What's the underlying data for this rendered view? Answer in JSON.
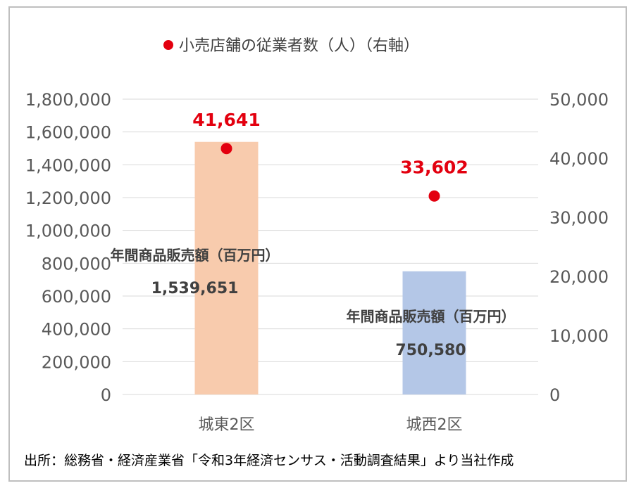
{
  "chart_data": {
    "type": "bar",
    "categories": [
      "城東2区",
      "城西2区"
    ],
    "series": [
      {
        "axis": "left",
        "type": "bar",
        "values": [
          1539651,
          750580
        ],
        "label": "年間商品販売額（百万円）",
        "colors": [
          "#f8cbad",
          "#b4c7e7"
        ]
      },
      {
        "axis": "right",
        "type": "scatter",
        "name": "小売店舗の従業者数（人）（右軸）",
        "values": [
          41641,
          33602
        ],
        "color": "#e3000f"
      }
    ],
    "bar_value_labels": [
      "1,539,651",
      "750,580"
    ],
    "point_value_labels": [
      "41,641",
      "33,602"
    ],
    "legend_text": "小売店舗の従業者数（人）（右軸）",
    "left_axis": {
      "ylim": [
        0,
        1800000
      ],
      "tick_values": [
        0,
        200000,
        400000,
        600000,
        800000,
        1000000,
        1200000,
        1400000,
        1600000,
        1800000
      ],
      "ticks": [
        "0",
        "200,000",
        "400,000",
        "600,000",
        "800,000",
        "1,000,000",
        "1,200,000",
        "1,400,000",
        "1,600,000",
        "1,800,000"
      ]
    },
    "right_axis": {
      "ylim": [
        0,
        50000
      ],
      "tick_values": [
        0,
        10000,
        20000,
        30000,
        40000,
        50000
      ],
      "ticks": [
        "0",
        "10,000",
        "20,000",
        "30,000",
        "40,000",
        "50,000"
      ]
    },
    "grid": true,
    "legend_position": "top"
  },
  "source_note": "出所：総務省・経済産業省「令和3年経済センサス・活動調査結果」より当社作成"
}
